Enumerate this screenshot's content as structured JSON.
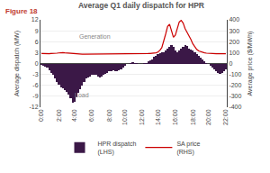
{
  "chart_data": {
    "type": "bar",
    "title": "Average Q1 daily dispatch for HPR",
    "annotations": [
      "Figure 18",
      "Generation",
      "Load"
    ],
    "ylabel": "Average dispatch (MW)",
    "y2label": "Average price ($/MWh)",
    "categories": [
      "0:00",
      null,
      null,
      null,
      null,
      null,
      null,
      null,
      null,
      "2:00",
      null,
      null,
      null,
      null,
      null,
      null,
      null,
      "4:00",
      null,
      null,
      null,
      null,
      null,
      null,
      null,
      null,
      "6:00",
      null,
      null,
      null,
      null,
      null,
      null,
      null,
      null,
      "8:00",
      null,
      null,
      null,
      null,
      null,
      null,
      null,
      "10:00",
      null,
      null,
      null,
      null,
      null,
      null,
      null,
      null,
      "12:00",
      null,
      null,
      null,
      null,
      null,
      null,
      null,
      "14:00",
      null,
      null,
      null,
      null,
      null,
      null,
      null,
      null,
      "16:00",
      null,
      null,
      null,
      null,
      null,
      null,
      null,
      null,
      "18:00",
      null,
      null,
      null,
      null,
      null,
      null,
      null,
      "20:00",
      null,
      null,
      null,
      null,
      null,
      null,
      null,
      null,
      "22:00"
    ],
    "series": [
      {
        "name": "HPR dispatch\n(LHS)",
        "type": "bar",
        "color": "#3b1847",
        "values": [
          -0.3,
          -0.5,
          -0.8,
          -1.2,
          -1.8,
          -2.5,
          -3.2,
          -4.0,
          -5.0,
          -5.8,
          -6.5,
          -6.8,
          -7.2,
          -7.8,
          -8.5,
          -9.5,
          -10.8,
          -10.5,
          -9.2,
          -8.0,
          -7.0,
          -6.0,
          -5.0,
          -4.2,
          -3.8,
          -3.5,
          -3.2,
          -3.0,
          -3.2,
          -3.5,
          -3.8,
          -3.5,
          -3.2,
          -2.8,
          -2.5,
          -2.2,
          -2.0,
          -1.8,
          -2.0,
          -2.2,
          -1.8,
          -1.5,
          -1.0,
          -0.5,
          -0.2,
          0.0,
          0.2,
          0.3,
          0.2,
          0.1,
          0.0,
          0.0,
          0.0,
          0.1,
          0.2,
          0.5,
          0.8,
          1.2,
          1.8,
          2.2,
          2.5,
          2.8,
          3.0,
          3.2,
          3.5,
          4.0,
          4.5,
          5.0,
          4.5,
          3.5,
          3.0,
          3.5,
          4.0,
          4.5,
          5.0,
          4.8,
          4.2,
          3.8,
          3.5,
          3.0,
          2.5,
          2.0,
          1.5,
          1.0,
          0.5,
          0.2,
          0.0,
          -0.5,
          -1.0,
          -1.5,
          -2.0,
          -2.5,
          -2.8,
          -2.5,
          -2.0,
          -1.5
        ]
      },
      {
        "name": "SA price\n(RHS)",
        "type": "line",
        "axis": "y2",
        "color": "#cc0000",
        "values": [
          92,
          90,
          88,
          88,
          90,
          92,
          95,
          95,
          95,
          97,
          100,
          100,
          98,
          96,
          94,
          92,
          90,
          89,
          88,
          87,
          86,
          85,
          85,
          85,
          86,
          87,
          88,
          89,
          90,
          90,
          90,
          90,
          90,
          90,
          89,
          88,
          88,
          88,
          88,
          89,
          89,
          90,
          90,
          90,
          90,
          90,
          90,
          90,
          90,
          90,
          90,
          90,
          90,
          90,
          90,
          91,
          92,
          93,
          95,
          98,
          105,
          120,
          145,
          200,
          270,
          340,
          360,
          300,
          240,
          260,
          330,
          380,
          395,
          370,
          320,
          290,
          250,
          220,
          180,
          150,
          130,
          115,
          108,
          102,
          98,
          95,
          93,
          92,
          91,
          90,
          90,
          90,
          90,
          90,
          90,
          90
        ]
      }
    ],
    "ylim": [
      -12,
      12
    ],
    "yticks": [
      -12,
      -9,
      -6,
      -3,
      0,
      3,
      6,
      9,
      12
    ],
    "y2lim": [
      -400,
      400
    ],
    "y2ticks": [
      -400,
      -300,
      -200,
      -100,
      0,
      100,
      200,
      300,
      400
    ],
    "grid": true,
    "legend": "bottom"
  }
}
